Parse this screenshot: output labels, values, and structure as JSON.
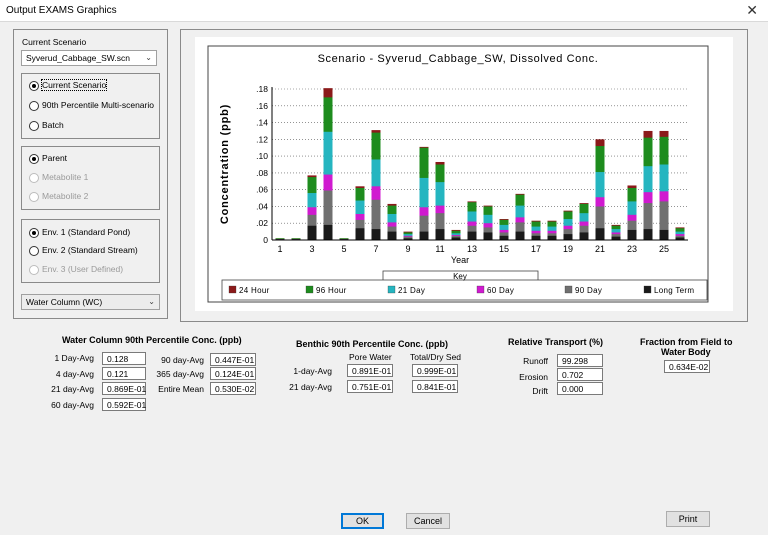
{
  "window": {
    "title": "Output  EXAMS Graphics",
    "close_glyph": "✕"
  },
  "left": {
    "scenario_label": "Current Scenario",
    "scenario_value": "Syverud_Cabbage_SW.scn",
    "mode_options": [
      "Current Scenario",
      "90th Percentile Multi-scenario",
      "Batch"
    ],
    "mode_selected": 0,
    "chem_options": [
      "Parent",
      "Metabolite 1",
      "Metabolite 2"
    ],
    "chem_selected": 0,
    "env_options": [
      "Env. 1 (Standard Pond)",
      "Env. 2 (Standard Stream)",
      "Env. 3 (User Defined)"
    ],
    "env_selected": 0,
    "output_value": "Water Column (WC)"
  },
  "chart_data": {
    "type": "bar",
    "title": "Scenario - Syverud_Cabbage_SW, Dissolved Conc.",
    "xlabel": "Year",
    "ylabel": "Concentration (ppb)",
    "ylim": [
      0,
      0.19
    ],
    "yticks": [
      0,
      0.02,
      0.04,
      0.06,
      0.08,
      0.1,
      0.12,
      0.14,
      0.16,
      0.18
    ],
    "ytick_labels": [
      "0",
      ".02",
      ".04",
      ".06",
      ".08",
      ".10",
      ".12",
      ".14",
      ".16",
      ".18"
    ],
    "categories": [
      1,
      2,
      3,
      4,
      5,
      6,
      7,
      8,
      9,
      10,
      11,
      12,
      13,
      14,
      15,
      16,
      17,
      18,
      19,
      20,
      21,
      22,
      23,
      24,
      25,
      26
    ],
    "xtick_labels": [
      "1",
      "3",
      "5",
      "7",
      "9",
      "11",
      "13",
      "15",
      "17",
      "19",
      "21",
      "23",
      "25"
    ],
    "layout": "overlapped",
    "legend_title": "Key",
    "series": [
      {
        "name": "24 Hour",
        "color": "#8b1a1a",
        "values": [
          0.002,
          0.002,
          0.077,
          0.181,
          0.002,
          0.064,
          0.131,
          0.043,
          0.01,
          0.111,
          0.093,
          0.012,
          0.046,
          0.041,
          0.025,
          0.055,
          0.023,
          0.023,
          0.035,
          0.044,
          0.12,
          0.018,
          0.065,
          0.13,
          0.13,
          0.015
        ]
      },
      {
        "name": "96 Hour",
        "color": "#1e8c1e",
        "values": [
          0.002,
          0.002,
          0.075,
          0.17,
          0.002,
          0.062,
          0.128,
          0.041,
          0.009,
          0.11,
          0.09,
          0.011,
          0.045,
          0.04,
          0.024,
          0.054,
          0.022,
          0.022,
          0.034,
          0.043,
          0.112,
          0.017,
          0.062,
          0.122,
          0.123,
          0.014
        ]
      },
      {
        "name": "21 Day",
        "color": "#25b5c0",
        "values": [
          0.001,
          0.001,
          0.056,
          0.129,
          0.001,
          0.047,
          0.096,
          0.031,
          0.007,
          0.074,
          0.069,
          0.008,
          0.034,
          0.03,
          0.018,
          0.041,
          0.016,
          0.016,
          0.025,
          0.032,
          0.081,
          0.013,
          0.046,
          0.088,
          0.09,
          0.01
        ]
      },
      {
        "name": "60 Day",
        "color": "#d01ad0",
        "values": [
          0.001,
          0.001,
          0.039,
          0.078,
          0.001,
          0.031,
          0.064,
          0.021,
          0.005,
          0.039,
          0.041,
          0.006,
          0.022,
          0.02,
          0.012,
          0.027,
          0.011,
          0.011,
          0.017,
          0.022,
          0.051,
          0.009,
          0.03,
          0.057,
          0.058,
          0.007
        ]
      },
      {
        "name": "90 Day",
        "color": "#707070",
        "values": [
          0.001,
          0.001,
          0.03,
          0.059,
          0.001,
          0.024,
          0.048,
          0.016,
          0.004,
          0.029,
          0.032,
          0.005,
          0.017,
          0.015,
          0.009,
          0.021,
          0.008,
          0.008,
          0.013,
          0.017,
          0.04,
          0.007,
          0.023,
          0.044,
          0.046,
          0.005
        ]
      },
      {
        "name": "Long Term",
        "color": "#1a1a1a",
        "values": [
          0.001,
          0.001,
          0.017,
          0.018,
          0.001,
          0.014,
          0.013,
          0.01,
          0.002,
          0.01,
          0.013,
          0.003,
          0.01,
          0.009,
          0.005,
          0.01,
          0.005,
          0.005,
          0.007,
          0.009,
          0.014,
          0.004,
          0.012,
          0.013,
          0.012,
          0.003
        ]
      }
    ]
  },
  "wc": {
    "header": "Water Column 90th Percentile Conc. (ppb)",
    "items": [
      {
        "label": "1 Day-Avg",
        "value": "0.128"
      },
      {
        "label": "4 day-Avg",
        "value": "0.121"
      },
      {
        "label": "21 day-Avg",
        "value": "0.869E-01"
      },
      {
        "label": "60 day-Avg",
        "value": "0.592E-01"
      },
      {
        "label": "90 day-Avg",
        "value": "0.447E-01"
      },
      {
        "label": "365 day-Avg",
        "value": "0.124E-01"
      },
      {
        "label": "Entire Mean",
        "value": "0.530E-02"
      }
    ]
  },
  "benthic": {
    "header": "Benthic 90th Percentile Conc. (ppb)",
    "col1": "Pore Water",
    "col2": "Total/Dry Sed",
    "rows": [
      {
        "label": "1-day-Avg",
        "pore": "0.891E-01",
        "total": "0.999E-01"
      },
      {
        "label": "21 day-Avg",
        "pore": "0.751E-01",
        "total": "0.841E-01"
      }
    ]
  },
  "transport": {
    "header": "Relative Transport (%)",
    "items": [
      {
        "label": "Runoff",
        "value": "99.298"
      },
      {
        "label": "Erosion",
        "value": "0.702"
      },
      {
        "label": "Drift",
        "value": "0.000"
      }
    ]
  },
  "fraction": {
    "header_line1": "Fraction from Field to",
    "header_line2": "Water Body",
    "value": "0.634E-02"
  },
  "buttons": {
    "ok": "OK",
    "cancel": "Cancel",
    "print": "Print"
  }
}
